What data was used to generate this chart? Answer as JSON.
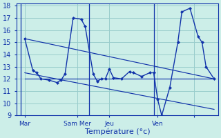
{
  "bg_color": "#cceee8",
  "grid_color": "#99cccc",
  "line_color": "#1133aa",
  "xlabel": "Température (°c)",
  "ylim": [
    9,
    18.2
  ],
  "yticks": [
    9,
    10,
    11,
    12,
    13,
    14,
    15,
    16,
    17,
    18
  ],
  "xlim": [
    -0.5,
    24.5
  ],
  "xtick_positions": [
    0.5,
    7,
    11,
    17,
    21.5
  ],
  "xtick_labels": [
    "Mar",
    "Sam Mer",
    "Jeu",
    "Ven",
    ""
  ],
  "vlines_x": [
    0.0,
    8.5,
    16.5
  ],
  "main_x": [
    0.5,
    1.5,
    2.0,
    2.5,
    3.5,
    4.5,
    5.0,
    5.5,
    6.5,
    7.5,
    8.0,
    9.0,
    9.5,
    10.0,
    10.5,
    11.0,
    11.5,
    12.5,
    13.5,
    14.0,
    15.0,
    16.0,
    16.5,
    17.0,
    17.5,
    18.5,
    19.5,
    20.0,
    21.0,
    22.0,
    22.5,
    23.0,
    24.0
  ],
  "main_y": [
    15.3,
    12.7,
    12.5,
    12.0,
    11.9,
    11.7,
    11.9,
    12.4,
    17.0,
    16.9,
    16.3,
    12.4,
    11.8,
    12.0,
    12.0,
    12.8,
    12.1,
    12.0,
    12.6,
    12.5,
    12.2,
    12.5,
    12.5,
    10.3,
    9.0,
    11.3,
    15.0,
    17.5,
    17.8,
    15.5,
    15.0,
    13.0,
    12.0
  ],
  "trend_lines": [
    {
      "x": [
        0.5,
        24.0
      ],
      "y": [
        15.3,
        12.0
      ]
    },
    {
      "x": [
        0.5,
        24.0
      ],
      "y": [
        12.5,
        9.5
      ]
    },
    {
      "x": [
        0.5,
        24.0
      ],
      "y": [
        12.0,
        12.0
      ]
    }
  ]
}
